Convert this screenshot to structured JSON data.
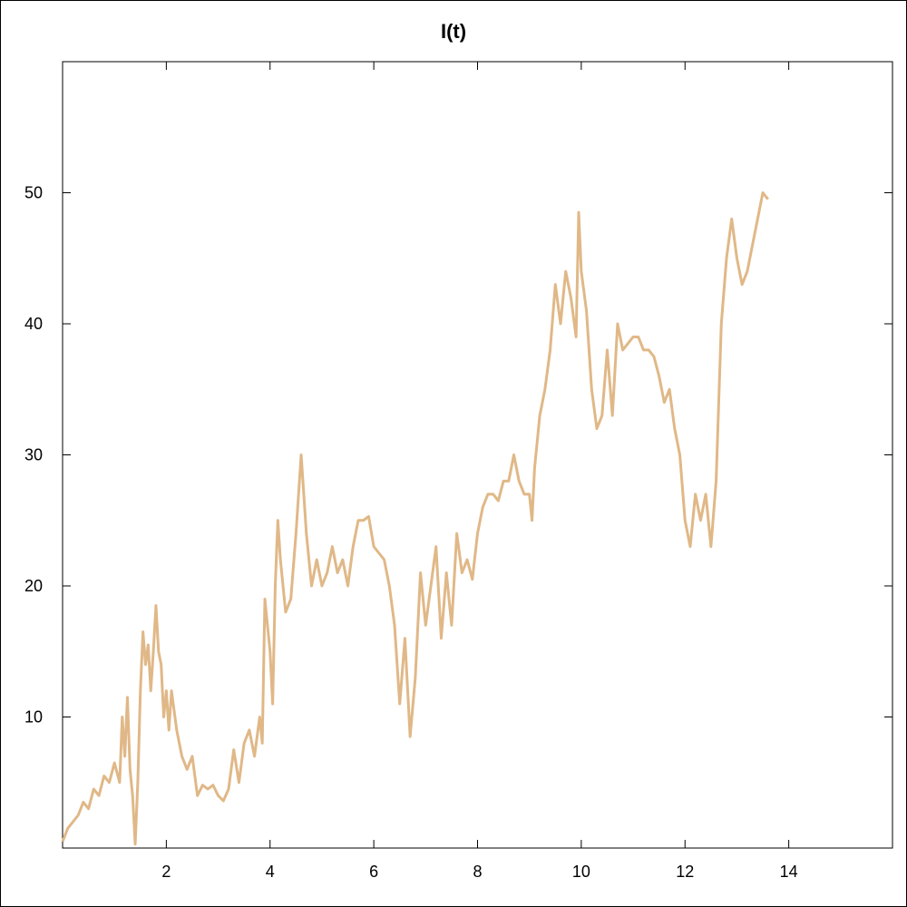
{
  "chart_data": {
    "type": "line",
    "title": "I(t)",
    "x": [
      0,
      0.1,
      0.2,
      0.3,
      0.4,
      0.5,
      0.6,
      0.7,
      0.8,
      0.9,
      1.0,
      1.1,
      1.15,
      1.2,
      1.25,
      1.3,
      1.35,
      1.4,
      1.45,
      1.5,
      1.55,
      1.6,
      1.65,
      1.7,
      1.75,
      1.8,
      1.85,
      1.9,
      1.95,
      2.0,
      2.05,
      2.1,
      2.2,
      2.3,
      2.4,
      2.5,
      2.6,
      2.7,
      2.8,
      2.9,
      3.0,
      3.1,
      3.2,
      3.3,
      3.4,
      3.5,
      3.6,
      3.7,
      3.8,
      3.85,
      3.9,
      4.0,
      4.05,
      4.1,
      4.15,
      4.2,
      4.3,
      4.4,
      4.5,
      4.6,
      4.7,
      4.8,
      4.9,
      5.0,
      5.1,
      5.2,
      5.3,
      5.4,
      5.5,
      5.6,
      5.7,
      5.8,
      5.9,
      6.0,
      6.1,
      6.2,
      6.3,
      6.4,
      6.5,
      6.6,
      6.7,
      6.8,
      6.9,
      7.0,
      7.1,
      7.2,
      7.3,
      7.4,
      7.5,
      7.6,
      7.7,
      7.8,
      7.9,
      8.0,
      8.1,
      8.2,
      8.3,
      8.4,
      8.5,
      8.6,
      8.7,
      8.8,
      8.9,
      9.0,
      9.05,
      9.1,
      9.2,
      9.3,
      9.4,
      9.5,
      9.6,
      9.7,
      9.8,
      9.9,
      9.95,
      10.0,
      10.1,
      10.2,
      10.3,
      10.4,
      10.5,
      10.6,
      10.7,
      10.8,
      10.9,
      11.0,
      11.1,
      11.2,
      11.3,
      11.4,
      11.5,
      11.6,
      11.7,
      11.8,
      11.9,
      12.0,
      12.1,
      12.2,
      12.3,
      12.4,
      12.5,
      12.6,
      12.7,
      12.8,
      12.9,
      13.0,
      13.1,
      13.2,
      13.3,
      13.4,
      13.5,
      13.6
    ],
    "series": [
      {
        "name": "I(t)",
        "color": "#e0b887",
        "values": [
          0.5,
          1.5,
          2,
          2.5,
          3.5,
          3,
          4.5,
          4,
          5.5,
          5,
          6.5,
          5,
          10,
          7,
          11.5,
          6,
          4,
          0.3,
          5,
          12,
          16.5,
          14,
          15.5,
          12,
          15,
          18.5,
          15,
          14,
          10,
          12,
          9,
          12,
          9,
          7,
          6,
          7,
          4,
          4.8,
          4.5,
          4.8,
          4,
          3.6,
          4.5,
          7.5,
          5,
          8,
          9,
          7,
          10,
          8,
          19,
          15,
          11,
          20,
          25,
          22,
          18,
          19,
          24,
          30,
          24,
          20,
          22,
          20,
          21,
          23,
          21,
          22,
          20,
          23,
          25,
          25,
          25.3,
          23,
          22.5,
          22,
          20,
          17,
          11,
          16,
          8.5,
          13,
          21,
          17,
          20,
          23,
          16,
          21,
          17,
          24,
          21,
          22,
          20.5,
          24,
          26,
          27,
          27,
          26.5,
          28,
          28,
          30,
          28,
          27,
          27,
          25,
          29,
          33,
          35,
          38,
          43,
          40,
          44,
          42,
          39,
          48.5,
          44,
          41,
          35,
          32,
          33,
          38,
          33,
          40,
          38,
          38.5,
          39,
          39,
          38,
          38,
          37.5,
          36,
          34,
          35,
          32,
          30,
          25,
          23,
          27,
          25,
          27,
          23,
          28,
          40,
          45,
          48,
          45,
          43,
          44,
          46,
          48,
          50,
          49.5
        ]
      }
    ],
    "xlim": [
      0,
      16
    ],
    "ylim": [
      0,
      60
    ],
    "xticks": [
      2,
      4,
      6,
      8,
      10,
      12,
      14
    ],
    "yticks": [
      10,
      20,
      30,
      40,
      50
    ]
  }
}
